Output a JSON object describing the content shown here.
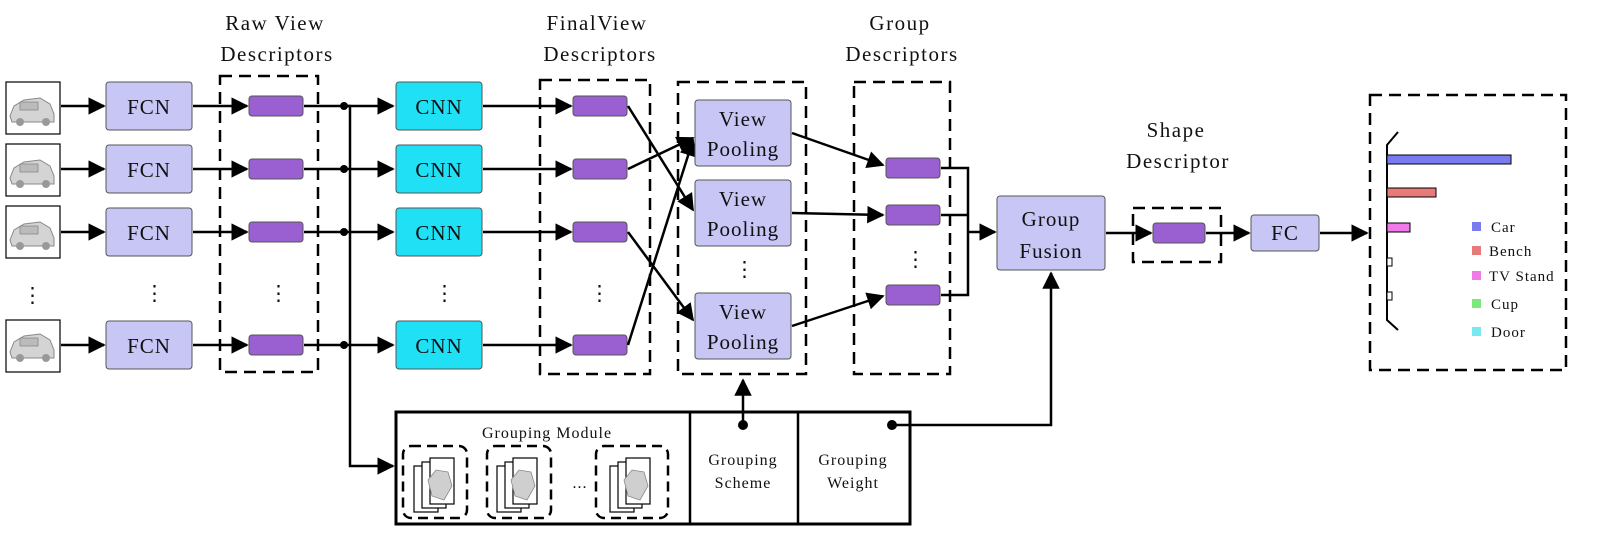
{
  "headers": {
    "raw_view": [
      "Raw View",
      "Descriptors"
    ],
    "final_view": [
      "FinalView",
      "Descriptors"
    ],
    "group": [
      "Group",
      "Descriptors"
    ],
    "shape": [
      "Shape",
      "Descriptor"
    ]
  },
  "fcn_label": "FCN",
  "cnn_label": "CNN",
  "view_pooling_label": [
    "View",
    "Pooling"
  ],
  "group_fusion_label": [
    "Group",
    "Fusion"
  ],
  "fc_label": "FC",
  "ellipsis": "⋮",
  "grouping_module": {
    "title": "Grouping Module",
    "dots": "...",
    "scheme": [
      "Grouping",
      "Scheme"
    ],
    "weight": [
      "Grouping",
      "Weight"
    ]
  },
  "legend": [
    {
      "label": "Car",
      "color": "#7b7bf0"
    },
    {
      "label": "Bench",
      "color": "#e87a7a"
    },
    {
      "label": "TV Stand",
      "color": "#f07ae8"
    },
    {
      "label": "Cup",
      "color": "#7ae87a"
    },
    {
      "label": "Door",
      "color": "#7ae8f0"
    }
  ],
  "colors": {
    "fcn_fill": "#c8c6f5",
    "cnn_fill": "#1fe0f5",
    "descriptor_fill": "#9a5fd0",
    "module_fill": "#c8c6f5"
  },
  "icons": [
    "car-front-icon",
    "car-angle-icon",
    "car-side-angle-icon",
    "car-side-icon"
  ]
}
